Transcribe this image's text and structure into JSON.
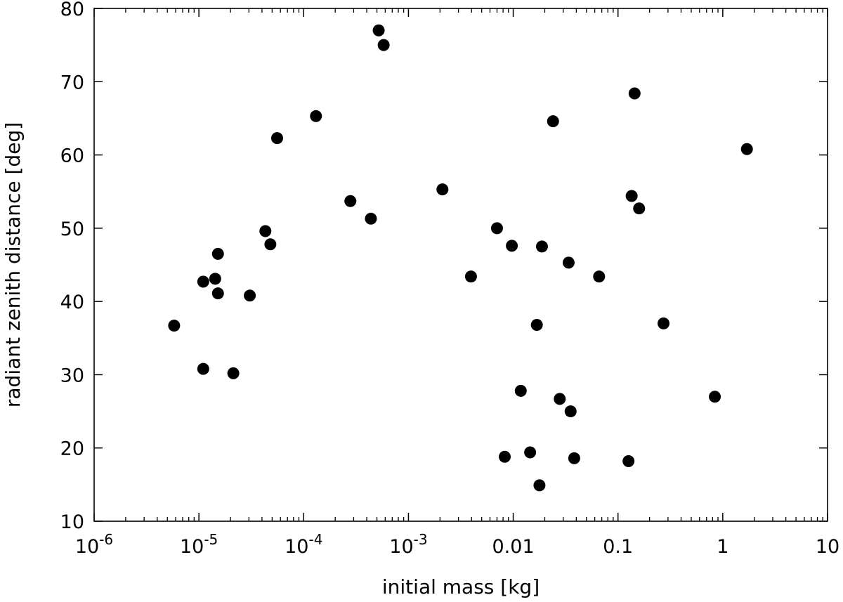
{
  "chart_data": {
    "type": "scatter",
    "title": "",
    "xlabel": "initial mass [kg]",
    "ylabel": "radiant zenith distance [deg]",
    "xscale": "log",
    "xlim": [
      1e-06,
      10
    ],
    "ylim": [
      10,
      80
    ],
    "grid": false,
    "legend": "none",
    "marker_color": "#000000",
    "x_ticks": [
      {
        "value": 1e-06,
        "base": "10",
        "exp": "-6"
      },
      {
        "value": 1e-05,
        "base": "10",
        "exp": "-5"
      },
      {
        "value": 0.0001,
        "base": "10",
        "exp": "-4"
      },
      {
        "value": 0.001,
        "base": "10",
        "exp": "-3"
      },
      {
        "value": 0.01,
        "base": "0.01",
        "exp": ""
      },
      {
        "value": 0.1,
        "base": "0.1",
        "exp": ""
      },
      {
        "value": 1,
        "base": "1",
        "exp": ""
      },
      {
        "value": 10,
        "base": "10",
        "exp": ""
      }
    ],
    "y_ticks": [
      {
        "value": 10,
        "label": "10"
      },
      {
        "value": 20,
        "label": "20"
      },
      {
        "value": 30,
        "label": "30"
      },
      {
        "value": 40,
        "label": "40"
      },
      {
        "value": 50,
        "label": "50"
      },
      {
        "value": 60,
        "label": "60"
      },
      {
        "value": 70,
        "label": "70"
      },
      {
        "value": 80,
        "label": "80"
      }
    ],
    "points": [
      {
        "x": 5.8e-06,
        "y": 36.7
      },
      {
        "x": 1.1e-05,
        "y": 42.7
      },
      {
        "x": 1.1e-05,
        "y": 30.8
      },
      {
        "x": 1.43e-05,
        "y": 43.1
      },
      {
        "x": 1.52e-05,
        "y": 46.5
      },
      {
        "x": 1.52e-05,
        "y": 41.1
      },
      {
        "x": 2.13e-05,
        "y": 30.2
      },
      {
        "x": 3.06e-05,
        "y": 40.8
      },
      {
        "x": 4.31e-05,
        "y": 49.6
      },
      {
        "x": 4.81e-05,
        "y": 47.8
      },
      {
        "x": 5.58e-05,
        "y": 62.3
      },
      {
        "x": 0.000131,
        "y": 65.3
      },
      {
        "x": 0.000279,
        "y": 53.7
      },
      {
        "x": 0.000438,
        "y": 51.3
      },
      {
        "x": 0.00052,
        "y": 77.0
      },
      {
        "x": 0.00058,
        "y": 75.0
      },
      {
        "x": 0.00211,
        "y": 55.3
      },
      {
        "x": 0.00395,
        "y": 43.4
      },
      {
        "x": 0.007,
        "y": 50.0
      },
      {
        "x": 0.0083,
        "y": 18.8
      },
      {
        "x": 0.0097,
        "y": 47.6
      },
      {
        "x": 0.0118,
        "y": 27.8
      },
      {
        "x": 0.0145,
        "y": 19.4
      },
      {
        "x": 0.0168,
        "y": 36.8
      },
      {
        "x": 0.0178,
        "y": 14.9
      },
      {
        "x": 0.0188,
        "y": 47.5
      },
      {
        "x": 0.024,
        "y": 64.6
      },
      {
        "x": 0.0278,
        "y": 26.7
      },
      {
        "x": 0.0338,
        "y": 45.3
      },
      {
        "x": 0.0353,
        "y": 25.0
      },
      {
        "x": 0.0382,
        "y": 18.6
      },
      {
        "x": 0.066,
        "y": 43.4
      },
      {
        "x": 0.126,
        "y": 18.2
      },
      {
        "x": 0.135,
        "y": 54.4
      },
      {
        "x": 0.144,
        "y": 68.4
      },
      {
        "x": 0.159,
        "y": 52.7
      },
      {
        "x": 0.272,
        "y": 37.0
      },
      {
        "x": 0.84,
        "y": 27.0
      },
      {
        "x": 1.7,
        "y": 60.8
      }
    ]
  }
}
